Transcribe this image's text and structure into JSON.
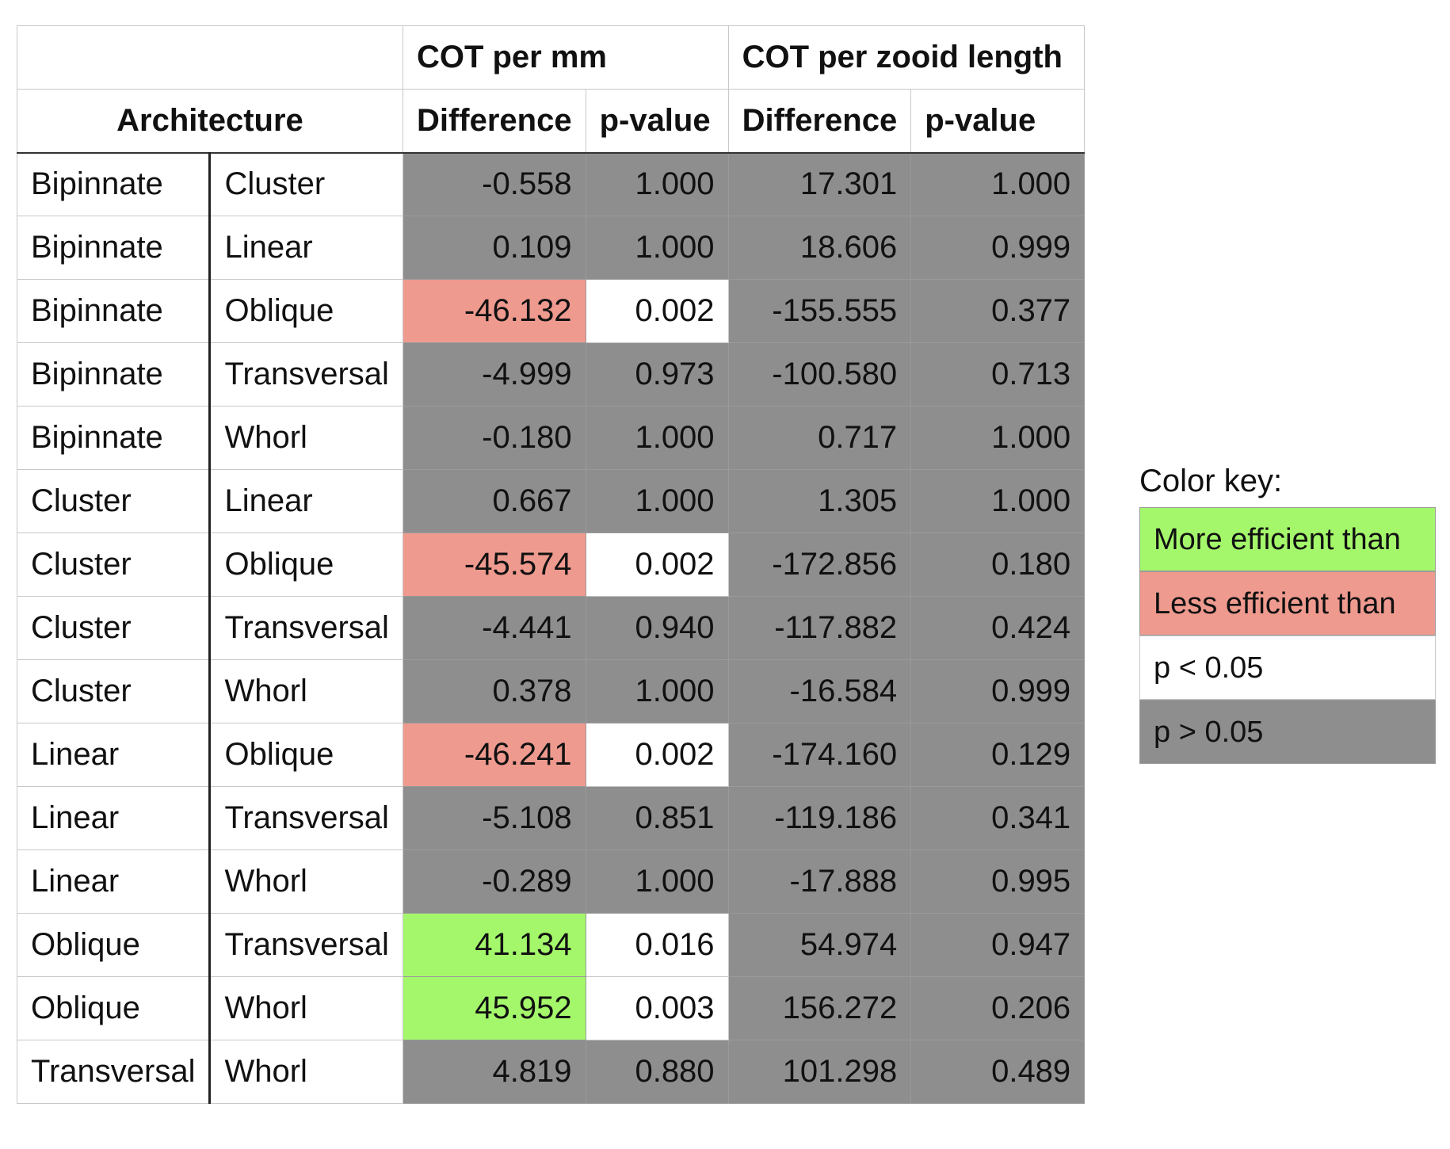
{
  "chart_data": {
    "type": "table",
    "headers": {
      "group1": "COT per mm",
      "group2": "COT per zooid length",
      "architecture": "Architecture",
      "difference": "Difference",
      "pvalue": "p-value"
    },
    "rows": [
      {
        "a": "Bipinnate",
        "b": "Cluster",
        "mm_diff": "-0.558",
        "mm_p": "1.000",
        "zl_diff": "17.301",
        "zl_p": "1.000",
        "mm_diff_color": "gray",
        "mm_p_color": "gray"
      },
      {
        "a": "Bipinnate",
        "b": "Linear",
        "mm_diff": "0.109",
        "mm_p": "1.000",
        "zl_diff": "18.606",
        "zl_p": "0.999",
        "mm_diff_color": "gray",
        "mm_p_color": "gray"
      },
      {
        "a": "Bipinnate",
        "b": "Oblique",
        "mm_diff": "-46.132",
        "mm_p": "0.002",
        "zl_diff": "-155.555",
        "zl_p": "0.377",
        "mm_diff_color": "red",
        "mm_p_color": "white"
      },
      {
        "a": "Bipinnate",
        "b": "Transversal",
        "mm_diff": "-4.999",
        "mm_p": "0.973",
        "zl_diff": "-100.580",
        "zl_p": "0.713",
        "mm_diff_color": "gray",
        "mm_p_color": "gray"
      },
      {
        "a": "Bipinnate",
        "b": "Whorl",
        "mm_diff": "-0.180",
        "mm_p": "1.000",
        "zl_diff": "0.717",
        "zl_p": "1.000",
        "mm_diff_color": "gray",
        "mm_p_color": "gray"
      },
      {
        "a": "Cluster",
        "b": "Linear",
        "mm_diff": "0.667",
        "mm_p": "1.000",
        "zl_diff": "1.305",
        "zl_p": "1.000",
        "mm_diff_color": "gray",
        "mm_p_color": "gray"
      },
      {
        "a": "Cluster",
        "b": "Oblique",
        "mm_diff": "-45.574",
        "mm_p": "0.002",
        "zl_diff": "-172.856",
        "zl_p": "0.180",
        "mm_diff_color": "red",
        "mm_p_color": "white"
      },
      {
        "a": "Cluster",
        "b": "Transversal",
        "mm_diff": "-4.441",
        "mm_p": "0.940",
        "zl_diff": "-117.882",
        "zl_p": "0.424",
        "mm_diff_color": "gray",
        "mm_p_color": "gray"
      },
      {
        "a": "Cluster",
        "b": "Whorl",
        "mm_diff": "0.378",
        "mm_p": "1.000",
        "zl_diff": "-16.584",
        "zl_p": "0.999",
        "mm_diff_color": "gray",
        "mm_p_color": "gray"
      },
      {
        "a": "Linear",
        "b": "Oblique",
        "mm_diff": "-46.241",
        "mm_p": "0.002",
        "zl_diff": "-174.160",
        "zl_p": "0.129",
        "mm_diff_color": "red",
        "mm_p_color": "white"
      },
      {
        "a": "Linear",
        "b": "Transversal",
        "mm_diff": "-5.108",
        "mm_p": "0.851",
        "zl_diff": "-119.186",
        "zl_p": "0.341",
        "mm_diff_color": "gray",
        "mm_p_color": "gray"
      },
      {
        "a": "Linear",
        "b": "Whorl",
        "mm_diff": "-0.289",
        "mm_p": "1.000",
        "zl_diff": "-17.888",
        "zl_p": "0.995",
        "mm_diff_color": "gray",
        "mm_p_color": "gray"
      },
      {
        "a": "Oblique",
        "b": "Transversal",
        "mm_diff": "41.134",
        "mm_p": "0.016",
        "zl_diff": "54.974",
        "zl_p": "0.947",
        "mm_diff_color": "green",
        "mm_p_color": "white"
      },
      {
        "a": "Oblique",
        "b": "Whorl",
        "mm_diff": "45.952",
        "mm_p": "0.003",
        "zl_diff": "156.272",
        "zl_p": "0.206",
        "mm_diff_color": "green",
        "mm_p_color": "white"
      },
      {
        "a": "Transversal",
        "b": "Whorl",
        "mm_diff": "4.819",
        "mm_p": "0.880",
        "zl_diff": "101.298",
        "zl_p": "0.489",
        "mm_diff_color": "gray",
        "mm_p_color": "gray"
      }
    ]
  },
  "color_key": {
    "title": "Color key:",
    "items": [
      {
        "label": "More efficient than",
        "color": "#a4f76b"
      },
      {
        "label": "Less efficient than",
        "color": "#ef9a8f"
      },
      {
        "label": "p < 0.05",
        "color": "#ffffff"
      },
      {
        "label": "p > 0.05",
        "color": "#8e8e8e"
      }
    ]
  }
}
